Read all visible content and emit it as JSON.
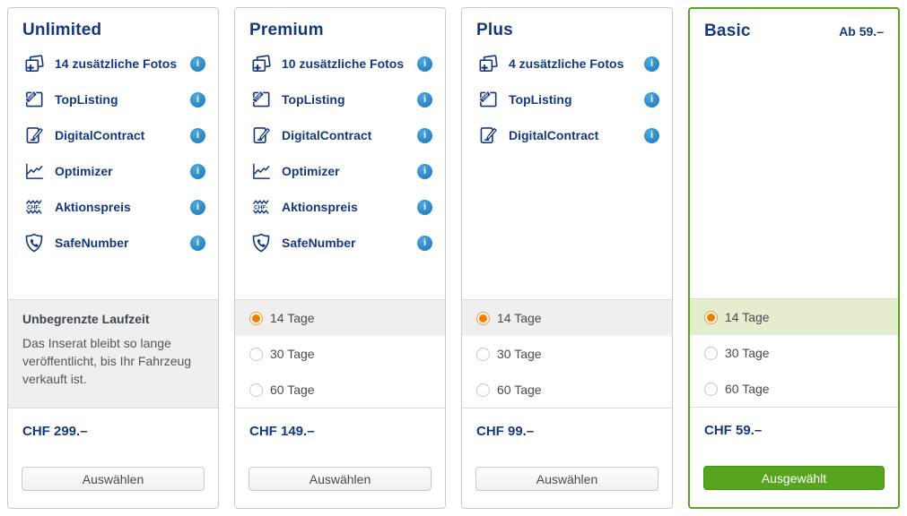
{
  "colors": {
    "navy": "#14387F",
    "info_blue": "#2B87C9",
    "orange": "#EF7D00",
    "green": "#57A51F",
    "green_row": "#E4EECF",
    "gray_row": "#EFEFEF"
  },
  "plans": [
    {
      "id": "unlimited",
      "title": "Unlimited",
      "header_note": "",
      "features": [
        {
          "icon": "photos-icon",
          "label": "14 zusätzliche Fotos"
        },
        {
          "icon": "toplisting-icon",
          "label": "TopListing"
        },
        {
          "icon": "digitalcontract-icon",
          "label": "DigitalContract"
        },
        {
          "icon": "optimizer-icon",
          "label": "Optimizer"
        },
        {
          "icon": "aktionspreis-icon",
          "label": "Aktionspreis"
        },
        {
          "icon": "safenumber-icon",
          "label": "SafeNumber"
        }
      ],
      "runtime": {
        "type": "unlimited",
        "title": "Unbegrenzte Laufzeit",
        "description": "Das Inserat bleibt so lange veröffentlicht, bis Ihr Fahrzeug verkauft ist."
      },
      "price": "CHF 299.–",
      "button": {
        "label": "Auswählen",
        "selected": false
      }
    },
    {
      "id": "premium",
      "title": "Premium",
      "header_note": "",
      "features": [
        {
          "icon": "photos-icon",
          "label": "10 zusätzliche Fotos"
        },
        {
          "icon": "toplisting-icon",
          "label": "TopListing"
        },
        {
          "icon": "digitalcontract-icon",
          "label": "DigitalContract"
        },
        {
          "icon": "optimizer-icon",
          "label": "Optimizer"
        },
        {
          "icon": "aktionspreis-icon",
          "label": "Aktionspreis"
        },
        {
          "icon": "safenumber-icon",
          "label": "SafeNumber"
        }
      ],
      "runtime": {
        "type": "options",
        "options": [
          {
            "label": "14 Tage",
            "selected": true
          },
          {
            "label": "30 Tage",
            "selected": false
          },
          {
            "label": "60 Tage",
            "selected": false
          }
        ]
      },
      "price": "CHF 149.–",
      "button": {
        "label": "Auswählen",
        "selected": false
      }
    },
    {
      "id": "plus",
      "title": "Plus",
      "header_note": "",
      "features": [
        {
          "icon": "photos-icon",
          "label": "4 zusätzliche Fotos"
        },
        {
          "icon": "toplisting-icon",
          "label": "TopListing"
        },
        {
          "icon": "digitalcontract-icon",
          "label": "DigitalContract"
        }
      ],
      "runtime": {
        "type": "options",
        "options": [
          {
            "label": "14 Tage",
            "selected": true
          },
          {
            "label": "30 Tage",
            "selected": false
          },
          {
            "label": "60 Tage",
            "selected": false
          }
        ]
      },
      "price": "CHF 99.–",
      "button": {
        "label": "Auswählen",
        "selected": false
      }
    },
    {
      "id": "basic",
      "title": "Basic",
      "header_note": "Ab 59.–",
      "highlighted": true,
      "features": [],
      "runtime": {
        "type": "options",
        "options": [
          {
            "label": "14 Tage",
            "selected": true
          },
          {
            "label": "30 Tage",
            "selected": false
          },
          {
            "label": "60 Tage",
            "selected": false
          }
        ]
      },
      "price": "CHF 59.–",
      "button": {
        "label": "Ausgewählt",
        "selected": true
      }
    }
  ],
  "info_icon_glyph": "i"
}
